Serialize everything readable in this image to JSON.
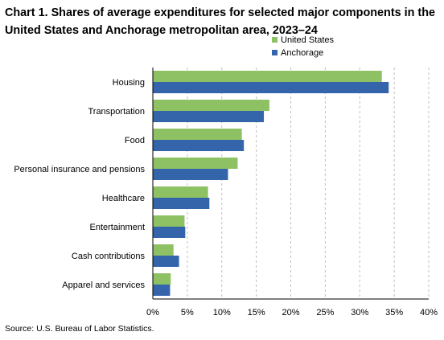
{
  "chart_data": {
    "type": "bar",
    "orientation": "horizontal",
    "title": "Chart 1. Shares of average expenditures for selected major components in the United States and Anchorage metropolitan area, 2023–24",
    "categories": [
      "Housing",
      "Transportation",
      "Food",
      "Personal insurance and pensions",
      "Healthcare",
      "Entertainment",
      "Cash contributions",
      "Apparel and services"
    ],
    "series": [
      {
        "name": "United States",
        "color": "#8dc164",
        "values": [
          33.2,
          16.9,
          12.9,
          12.3,
          8.0,
          4.6,
          3.0,
          2.6
        ]
      },
      {
        "name": "Anchorage",
        "color": "#3464aa",
        "values": [
          34.2,
          16.1,
          13.2,
          10.9,
          8.2,
          4.7,
          3.8,
          2.5
        ]
      }
    ],
    "xlim": [
      0,
      40
    ],
    "x_ticks": [
      0,
      5,
      10,
      15,
      20,
      25,
      30,
      35,
      40
    ],
    "x_tick_format": "percent",
    "grid": "vertical-dashed",
    "legend_position": "top-right",
    "source": "Source: U.S. Bureau of Labor Statistics."
  }
}
